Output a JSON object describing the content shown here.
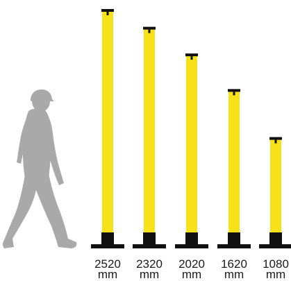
{
  "colors": {
    "post": "#f7e21a",
    "base": "#111111",
    "figure": "#a9a9a9",
    "background": "#ffffff"
  },
  "figure": {
    "icon": "walking-person-icon"
  },
  "posts": [
    {
      "height_value": "2520",
      "unit": "mm",
      "height_mm": 2520
    },
    {
      "height_value": "2320",
      "unit": "mm",
      "height_mm": 2320
    },
    {
      "height_value": "2020",
      "unit": "mm",
      "height_mm": 2020
    },
    {
      "height_value": "1620",
      "unit": "mm",
      "height_mm": 1620
    },
    {
      "height_value": "1080",
      "unit": "mm",
      "height_mm": 1080
    }
  ]
}
